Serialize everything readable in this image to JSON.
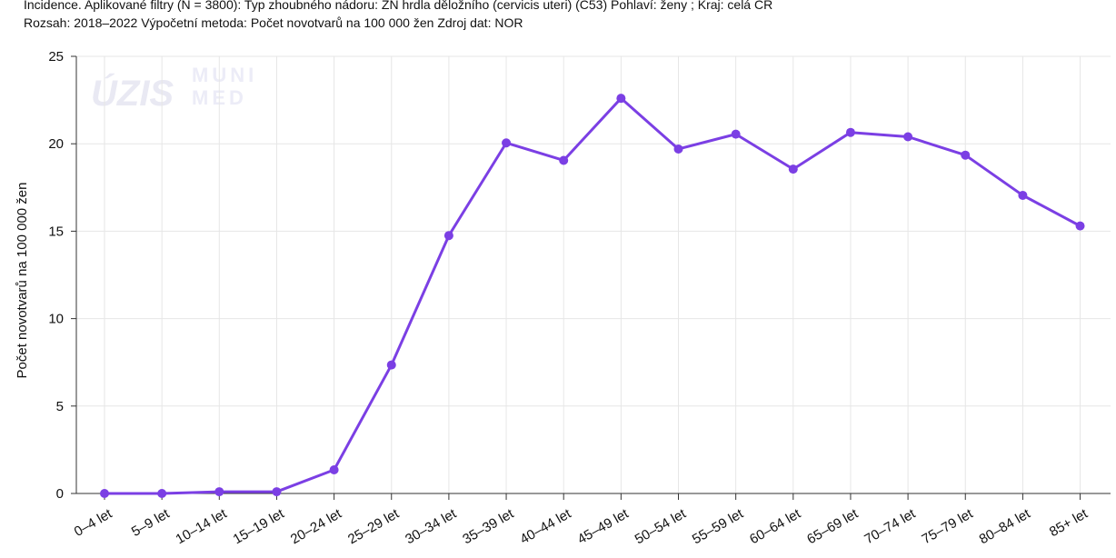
{
  "header": {
    "line1": "Incidence. Aplikované filtry (N = 3800): Typ zhoubného nádoru: ZN hrdla děložního (cervicis uteri) (C53) Pohlaví: ženy ; Kraj: celá ČR",
    "line2": "Rozsah: 2018–2022 Výpočetní metoda: Počet novotvarů na 100 000 žen Zdroj dat: NOR"
  },
  "watermark": {
    "logo1": "ÚZIS",
    "logo2_line1": "MUNI",
    "logo2_line2": "MED"
  },
  "colors": {
    "series": "#7b3fe4",
    "grid": "#e6e6e6",
    "axis": "#333333"
  },
  "chart_data": {
    "type": "line",
    "title": "",
    "xlabel": "",
    "ylabel": "Počet novotvarů na 100 000 žen",
    "ylim": [
      0,
      25
    ],
    "yticks": [
      0,
      5,
      10,
      15,
      20,
      25
    ],
    "grid": true,
    "categories": [
      "0–4 let",
      "5–9 let",
      "10–14 let",
      "15–19 let",
      "20–24 let",
      "25–29 let",
      "30–34 let",
      "35–39 let",
      "40–44 let",
      "45–49 let",
      "50–54 let",
      "55–59 let",
      "60–64 let",
      "65–69 let",
      "70–74 let",
      "75–79 let",
      "80–84 let",
      "85+ let"
    ],
    "series": [
      {
        "values": [
          0.0,
          0.0,
          0.1,
          0.1,
          1.35,
          7.35,
          14.75,
          20.05,
          19.05,
          22.6,
          19.7,
          20.55,
          18.55,
          20.65,
          20.4,
          19.35,
          17.05,
          15.3
        ]
      }
    ]
  }
}
